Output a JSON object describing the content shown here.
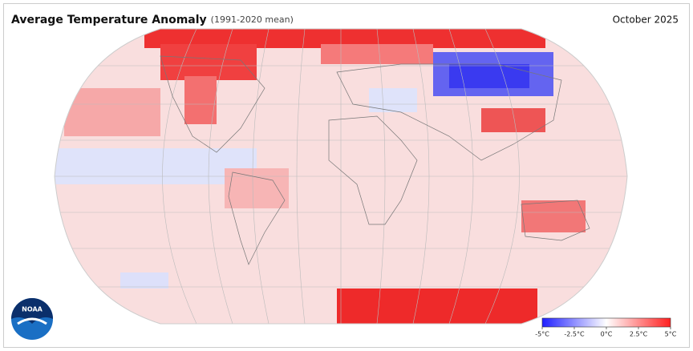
{
  "header": {
    "title": "Average Temperature Anomaly",
    "subtitle": "(1991-2020 mean)",
    "date": "October 2025"
  },
  "logo": {
    "label": "NOAA"
  },
  "colorbar": {
    "clim": [
      -5,
      5
    ],
    "colors": [
      "#1f1fff",
      "#ffffff",
      "#ff1f1f"
    ],
    "ticks": [
      {
        "value": -5,
        "label": "-5°C"
      },
      {
        "value": -2.5,
        "label": "-2.5°C"
      },
      {
        "value": 0,
        "label": "0°C"
      },
      {
        "value": 2.5,
        "label": "2.5°C"
      },
      {
        "value": 5,
        "label": "5°C"
      }
    ]
  }
}
